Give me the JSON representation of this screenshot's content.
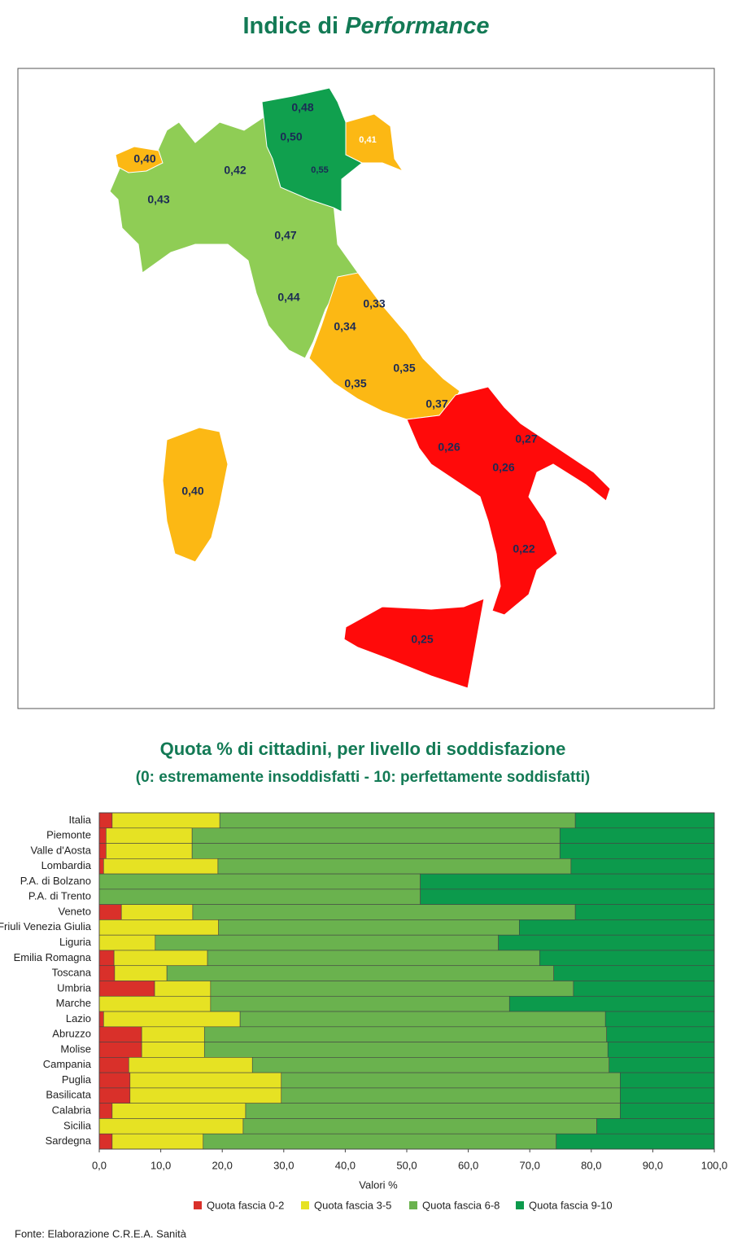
{
  "header": {
    "title": "Indice di",
    "title_italic": "Performance"
  },
  "map": {
    "labels": [
      "0,48",
      "0,50",
      "0,41",
      "0,55",
      "0,40",
      "0,42",
      "0,43",
      "0,47",
      "0,44",
      "0,33",
      "0,34",
      "0,35",
      "0,35",
      "0,37",
      "0,27",
      "0,26",
      "0,26",
      "0,40",
      "0,22",
      "0,25"
    ]
  },
  "chart_data": {
    "type": "stacked-barh",
    "title": "Quota % di cittadini, per livello di soddisfazione",
    "subtitle": "(0: estremamente insoddisfatti - 10: perfettamente soddisfatti)",
    "xlabel": "Valori %",
    "categories": [
      "Italia",
      "Piemonte",
      "Valle d'Aosta",
      "Lombardia",
      "P.A. di Bolzano",
      "P.A. di Trento",
      "Veneto",
      "Friuli Venezia Giulia",
      "Liguria",
      "Emilia Romagna",
      "Toscana",
      "Umbria",
      "Marche",
      "Lazio",
      "Abruzzo",
      "Molise",
      "Campania",
      "Puglia",
      "Basilicata",
      "Calabria",
      "Sicilia",
      "Sardegna"
    ],
    "series": [
      {
        "name": "Quota fascia 0-2",
        "color": "#d9302a",
        "values": [
          2.1,
          1.1,
          1.1,
          0.7,
          0,
          0,
          3.6,
          0,
          0,
          2.4,
          2.5,
          9.0,
          0,
          0.7,
          6.9,
          6.9,
          4.8,
          5.0,
          5.0,
          2.1,
          0,
          2.1
        ]
      },
      {
        "name": "Quota fascia 3-5",
        "color": "#e6e223",
        "values": [
          17.5,
          14.0,
          14.0,
          18.6,
          0,
          0,
          11.6,
          19.4,
          9.1,
          15.2,
          8.5,
          9.1,
          18.1,
          22.2,
          10.2,
          10.2,
          20.1,
          24.6,
          24.6,
          21.7,
          23.4,
          14.8
        ]
      },
      {
        "name": "Quota fascia 6-8",
        "color": "#6ab24e",
        "values": [
          57.8,
          59.8,
          59.8,
          57.4,
          52.2,
          52.2,
          62.2,
          48.9,
          55.8,
          54.0,
          62.9,
          59.0,
          48.6,
          59.4,
          65.4,
          65.6,
          58.0,
          55.1,
          55.1,
          60.9,
          57.5,
          57.4
        ]
      },
      {
        "name": "Quota fascia 9-10",
        "color": "#0c9a4c",
        "values": [
          22.6,
          25.1,
          25.1,
          23.3,
          47.8,
          47.8,
          22.6,
          31.7,
          35.1,
          28.4,
          26.1,
          22.9,
          33.3,
          17.7,
          17.5,
          17.3,
          17.1,
          15.3,
          15.3,
          15.3,
          19.1,
          25.7
        ]
      }
    ],
    "xlim": [
      0,
      100
    ],
    "xticks": [
      {
        "value": 0,
        "label": "0,0"
      },
      {
        "value": 10,
        "label": "10,0"
      },
      {
        "value": 20,
        "label": "20,0"
      },
      {
        "value": 30,
        "label": "30,0"
      },
      {
        "value": 40,
        "label": "40,0"
      },
      {
        "value": 50,
        "label": "50,0"
      },
      {
        "value": 60,
        "label": "60,0"
      },
      {
        "value": 70,
        "label": "70,0"
      },
      {
        "value": 80,
        "label": "80,0"
      },
      {
        "value": 90,
        "label": "90,0"
      },
      {
        "value": 100,
        "label": "100,0"
      }
    ],
    "legend": "bottom"
  },
  "source": "Fonte: Elaborazione C.R.E.A. Sanità"
}
